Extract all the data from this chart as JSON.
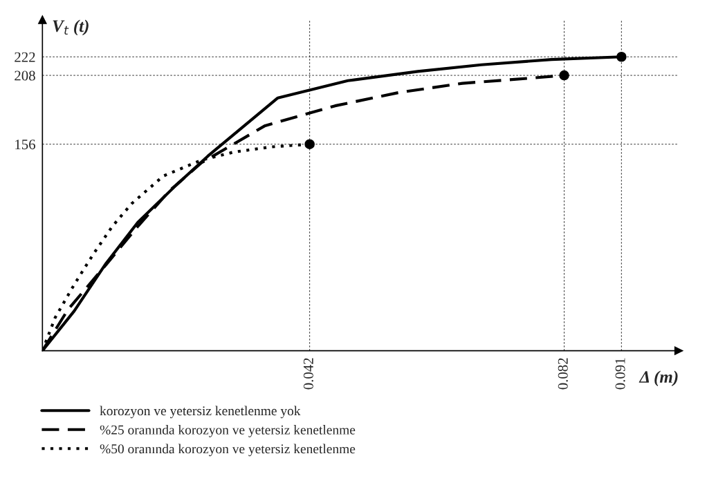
{
  "chart_data": {
    "type": "line",
    "xlabel": "Δ (m)",
    "ylabel": "V$_{t}$ (t)",
    "xlim": [
      0,
      0.1
    ],
    "ylim": [
      0,
      250
    ],
    "xticks": [
      0.042,
      0.082,
      0.091
    ],
    "yticks": [
      156,
      208,
      222
    ],
    "grid": true,
    "legend": "bottom left",
    "series": [
      {
        "name": "korozyon ve yetersiz kenetlenme yok",
        "color": "#000000",
        "line_style": "solid",
        "x": [
          0,
          0.005,
          0.01,
          0.015,
          0.021,
          0.026,
          0.037,
          0.048,
          0.059,
          0.069,
          0.08,
          0.091
        ],
        "values": [
          0,
          30,
          66,
          97,
          125,
          147,
          191,
          204,
          211,
          216,
          220,
          222
        ]
      },
      {
        "name": "%25 oranında korozyon ve yetersiz kenetlenme",
        "color": "#000000",
        "line_style": "dashed",
        "x": [
          0,
          0.004,
          0.01,
          0.015,
          0.02,
          0.025,
          0.035,
          0.046,
          0.056,
          0.066,
          0.077,
          0.082
        ],
        "values": [
          0,
          31,
          65,
          94,
          121,
          142,
          170,
          185,
          195,
          202,
          206,
          208
        ]
      },
      {
        "name": "%50 oranında korozyon ve yetersiz kenetlenme",
        "color": "#000000",
        "line_style": "dotted",
        "x": [
          0,
          0.002,
          0.005,
          0.008,
          0.011,
          0.014,
          0.019,
          0.025,
          0.03,
          0.036,
          0.042
        ],
        "values": [
          0,
          25,
          50,
          73,
          94,
          111,
          132,
          144,
          150,
          154,
          156
        ]
      },
      {
        "type": "scatter",
        "marker": "circle",
        "color": "#000000",
        "x": [
          0.042,
          0.082,
          0.091
        ],
        "values": [
          156,
          208,
          222
        ]
      }
    ]
  }
}
